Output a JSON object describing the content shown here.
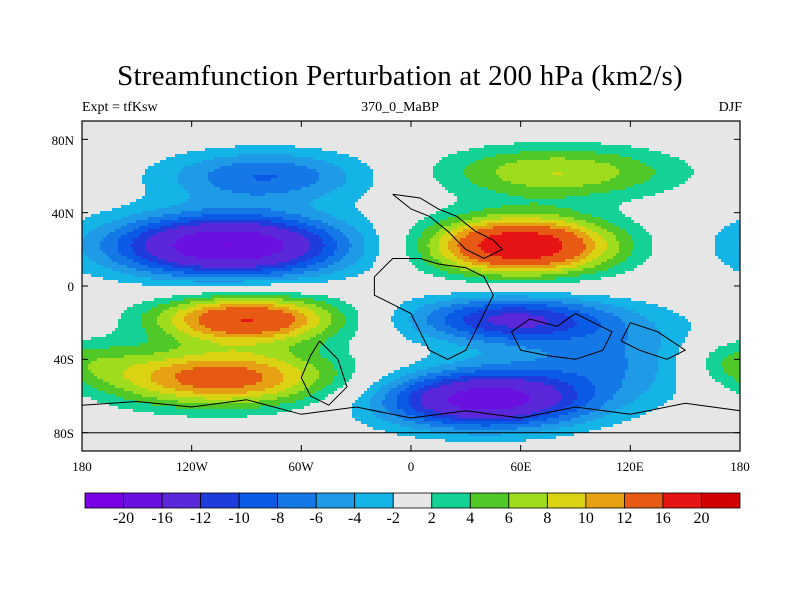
{
  "title": "Streamfunction Perturbation at 200 hPa (km2/s)",
  "subtitle_left": "Expt = tfKsw",
  "subtitle_center": "370_0_MaBP",
  "subtitle_right": "DJF",
  "lat_labels": [
    "80N",
    "40N",
    "0",
    "40S",
    "80S"
  ],
  "lon_labels": [
    "180",
    "120W",
    "60W",
    "0",
    "60E",
    "120E",
    "180"
  ],
  "colorbar": {
    "labels": [
      "-20",
      "-16",
      "-12",
      "-10",
      "-8",
      "-6",
      "-4",
      "-2",
      "2",
      "4",
      "6",
      "8",
      "10",
      "12",
      "16",
      "20"
    ],
    "colors": [
      "#7a00e6",
      "#6a10e0",
      "#5a28d8",
      "#1e3cdc",
      "#0a5ae6",
      "#1478e6",
      "#1e9ae6",
      "#14b4e6",
      "#e6e6e6",
      "#14d296",
      "#50c828",
      "#a0dc1e",
      "#dcd214",
      "#e6a014",
      "#e65a14",
      "#e61414",
      "#d20000"
    ]
  },
  "chart_data": {
    "type": "heatmap",
    "title": "Streamfunction Perturbation at 200 hPa (km2/s)",
    "xlabel": "",
    "ylabel": "",
    "xlim": [
      -180,
      180
    ],
    "ylim": [
      -90,
      90
    ],
    "units": "km2/s",
    "features": [
      {
        "lon": -80,
        "lat": 60,
        "value": -8,
        "sx": 40,
        "sy": 10
      },
      {
        "lon": -100,
        "lat": 22,
        "value": -20,
        "sx": 45,
        "sy": 12
      },
      {
        "lon": 60,
        "lat": 22,
        "value": 20,
        "sx": 35,
        "sy": 11
      },
      {
        "lon": 80,
        "lat": 62,
        "value": 8,
        "sx": 45,
        "sy": 10
      },
      {
        "lon": -90,
        "lat": -18,
        "value": 16,
        "sx": 35,
        "sy": 9
      },
      {
        "lon": -105,
        "lat": -50,
        "value": 14,
        "sx": 45,
        "sy": 11
      },
      {
        "lon": 55,
        "lat": -18,
        "value": -12,
        "sx": 40,
        "sy": 9
      },
      {
        "lon": 40,
        "lat": -62,
        "value": -18,
        "sx": 40,
        "sy": 11
      },
      {
        "lon": 120,
        "lat": -40,
        "value": -6,
        "sx": 50,
        "sy": 15
      },
      {
        "lon": 175,
        "lat": -40,
        "value": 6,
        "sx": 25,
        "sy": 10
      }
    ]
  }
}
